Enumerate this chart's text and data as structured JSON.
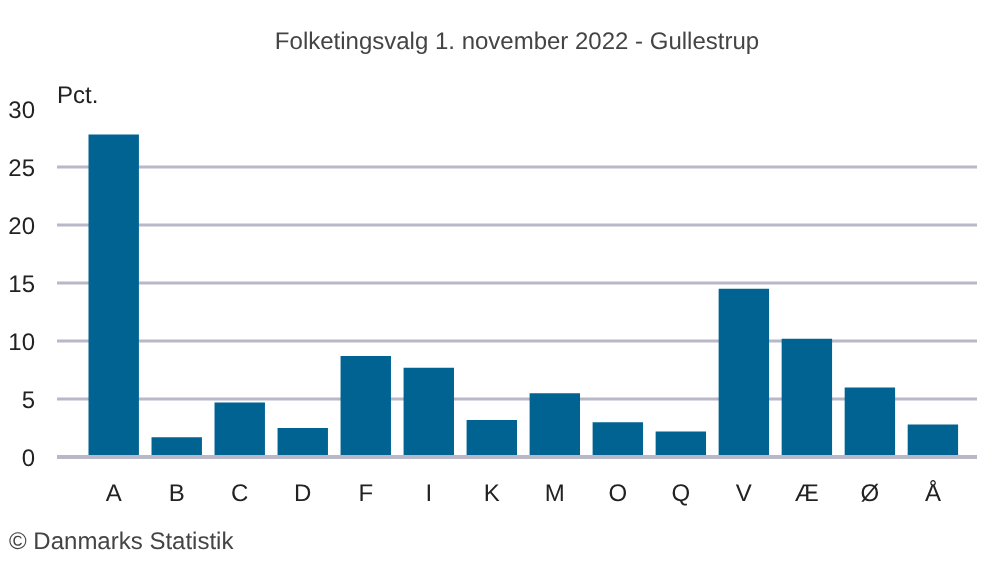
{
  "chart_data": {
    "type": "bar",
    "title": "Folketingsvalg 1. november 2022 - Gullestrup",
    "ylabel": "Pct.",
    "categories": [
      "A",
      "B",
      "C",
      "D",
      "F",
      "I",
      "K",
      "M",
      "O",
      "Q",
      "V",
      "Æ",
      "Ø",
      "Å"
    ],
    "values": [
      27.8,
      1.7,
      4.7,
      2.5,
      8.7,
      7.7,
      3.2,
      5.5,
      3.0,
      2.2,
      14.5,
      10.2,
      6.0,
      2.8
    ],
    "color": "#006392",
    "ylim": [
      0,
      30
    ],
    "yticks": [
      0,
      5,
      10,
      15,
      20,
      25,
      30
    ],
    "grid": "y",
    "annotations": [
      "© Danmarks Statistik"
    ]
  }
}
